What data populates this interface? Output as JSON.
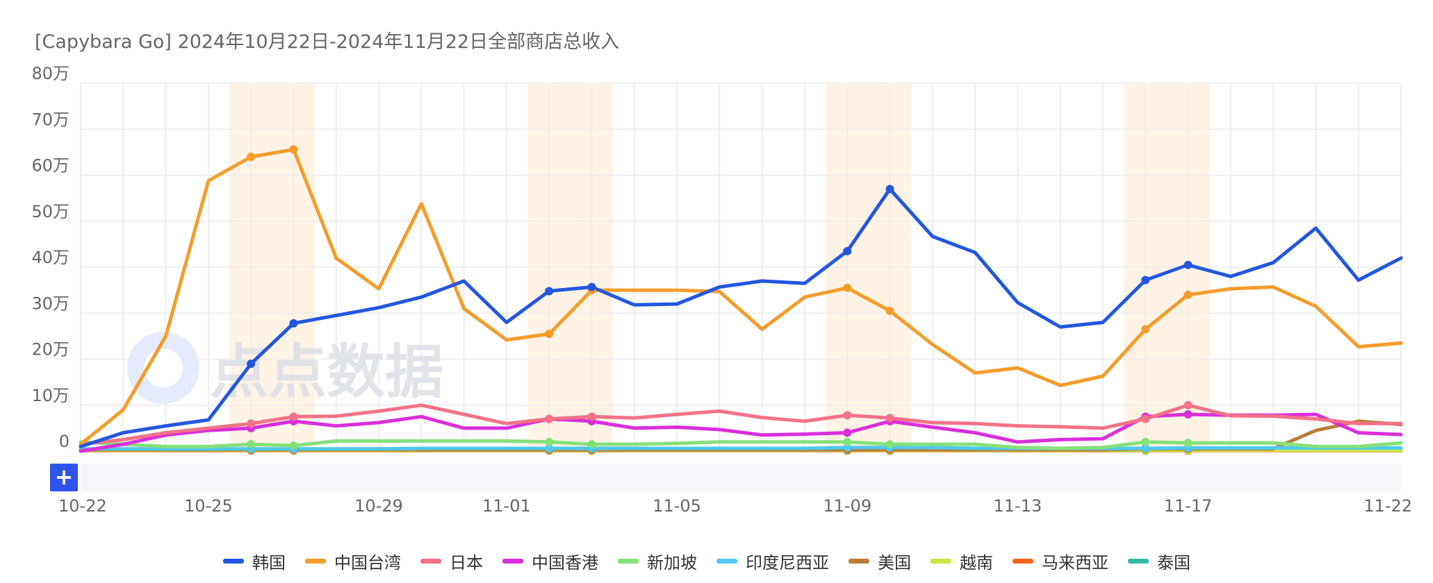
{
  "title": "[Capybara Go] 2024年10月22日-2024年11月22日全部商店总收入",
  "watermark": "点点数据",
  "zoom_button": "+",
  "colors": {
    "grid": "#ebebeb",
    "highlight": "#fff3e6",
    "zoom_track": "#f5f6f9"
  },
  "chart_data": {
    "type": "line",
    "x": [
      "10-22",
      "10-23",
      "10-24",
      "10-25",
      "10-26",
      "10-27",
      "10-28",
      "10-29",
      "10-30",
      "10-31",
      "11-01",
      "11-02",
      "11-03",
      "11-04",
      "11-05",
      "11-06",
      "11-07",
      "11-08",
      "11-09",
      "11-10",
      "11-11",
      "11-12",
      "11-13",
      "11-14",
      "11-15",
      "11-16",
      "11-17",
      "11-18",
      "11-19",
      "11-20",
      "11-21",
      "11-22"
    ],
    "x_tick_labels": [
      "10-22",
      "10-25",
      "10-29",
      "11-01",
      "11-05",
      "11-09",
      "11-13",
      "11-17",
      "11-22"
    ],
    "y_tick_labels": [
      "0",
      "10万",
      "20万",
      "30万",
      "40万",
      "50万",
      "60万",
      "70万",
      "80万"
    ],
    "ylim": [
      0,
      800000
    ],
    "grid": true,
    "legend_position": "bottom",
    "highlight_ranges": [
      [
        "10-26",
        "10-27"
      ],
      [
        "11-02",
        "11-03"
      ],
      [
        "11-09",
        "11-10"
      ],
      [
        "11-16",
        "11-17"
      ]
    ],
    "markers_at": [
      "10-26",
      "10-27",
      "11-02",
      "11-03",
      "11-09",
      "11-10",
      "11-16",
      "11-17"
    ],
    "series": [
      {
        "name": "韩国",
        "color": "#2456e0",
        "values": [
          10000,
          40000,
          55000,
          68000,
          190000,
          278000,
          295000,
          312000,
          335000,
          370000,
          280000,
          348000,
          357000,
          318000,
          320000,
          357000,
          370000,
          365000,
          435000,
          570000,
          467000,
          432000,
          323000,
          270000,
          280000,
          372000,
          405000,
          380000,
          410000,
          485000,
          372000,
          420000
        ]
      },
      {
        "name": "中国台湾",
        "color": "#f59c2a",
        "values": [
          15000,
          90000,
          250000,
          588000,
          640000,
          656000,
          420000,
          353000,
          538000,
          310000,
          242000,
          255000,
          350000,
          350000,
          350000,
          347000,
          265000,
          335000,
          355000,
          305000,
          232000,
          170000,
          181000,
          143000,
          163000,
          265000,
          340000,
          353000,
          357000,
          315000,
          227000,
          235000
        ]
      },
      {
        "name": "日本",
        "color": "#f27288",
        "values": [
          15000,
          25000,
          40000,
          50000,
          60000,
          75000,
          76000,
          87000,
          100000,
          80000,
          60000,
          70000,
          75000,
          72000,
          80000,
          87000,
          73000,
          65000,
          78000,
          72000,
          62000,
          60000,
          55000,
          53000,
          50000,
          70000,
          100000,
          77000,
          76000,
          70000,
          60000,
          60000
        ]
      },
      {
        "name": "中国香港",
        "color": "#d92fdb",
        "values": [
          0,
          15000,
          35000,
          45000,
          50000,
          65000,
          55000,
          62000,
          75000,
          50000,
          50000,
          70000,
          65000,
          50000,
          52000,
          47000,
          35000,
          37000,
          40000,
          65000,
          52000,
          40000,
          20000,
          25000,
          27000,
          75000,
          80000,
          78000,
          78000,
          80000,
          40000,
          36000
        ]
      },
      {
        "name": "新加坡",
        "color": "#86e07a",
        "values": [
          20000,
          15000,
          10000,
          10000,
          15000,
          12000,
          22000,
          22000,
          22000,
          22000,
          22000,
          20000,
          15000,
          15000,
          17000,
          20000,
          20000,
          20000,
          20000,
          15000,
          15000,
          15000,
          8000,
          6000,
          8000,
          20000,
          18000,
          18000,
          18000,
          10000,
          10000,
          18000
        ]
      },
      {
        "name": "印度尼西亚",
        "color": "#4fc9ef",
        "values": [
          5000,
          5000,
          5000,
          5000,
          5000,
          5000,
          5000,
          5000,
          6000,
          6000,
          6000,
          6000,
          6000,
          6000,
          6000,
          6000,
          6000,
          6000,
          8000,
          8000,
          8000,
          6000,
          6000,
          6000,
          6000,
          6000,
          7000,
          7000,
          7000,
          7000,
          7000,
          7000
        ]
      },
      {
        "name": "美国",
        "color": "#b87e3a",
        "values": [
          3000,
          3000,
          3000,
          3000,
          3000,
          3000,
          3000,
          3000,
          3000,
          3000,
          3000,
          3000,
          3000,
          3000,
          3000,
          3000,
          3000,
          3000,
          3000,
          3000,
          3000,
          3000,
          3000,
          3000,
          3000,
          5000,
          5000,
          5000,
          5000,
          45000,
          65000,
          58000
        ]
      },
      {
        "name": "越南",
        "color": "#c8e845",
        "values": [
          2000,
          2000,
          2000,
          2000,
          2000,
          2000,
          2000,
          2000,
          2000,
          2000,
          2000,
          2000,
          2000,
          2000,
          2000,
          2000,
          2000,
          2000,
          2000,
          2000,
          2000,
          2000,
          2000,
          2000,
          2000,
          2000,
          2000,
          2000,
          2000,
          2000,
          2000,
          2000
        ]
      },
      {
        "name": "马来西亚",
        "color": "#f4631c",
        "values": [
          1000,
          1000,
          1000,
          1000,
          1000,
          1000,
          1000,
          1000,
          1000,
          1000,
          1000,
          1000,
          1000,
          1000,
          1000,
          1000,
          1000,
          1000,
          1000,
          1000,
          1000,
          1000,
          1000,
          1000,
          1000,
          1000,
          1000,
          1000,
          1000,
          1000,
          1000,
          1000
        ]
      },
      {
        "name": "泰国",
        "color": "#33bba5",
        "values": [
          2000,
          2000,
          2000,
          2000,
          2000,
          2000,
          2000,
          3000,
          3000,
          3000,
          3000,
          3000,
          3000,
          3000,
          3000,
          3000,
          3000,
          3000,
          5000,
          5000,
          4000,
          4000,
          4000,
          4000,
          4000,
          4000,
          4000,
          4000,
          4000,
          4000,
          4000,
          4000
        ]
      }
    ]
  }
}
